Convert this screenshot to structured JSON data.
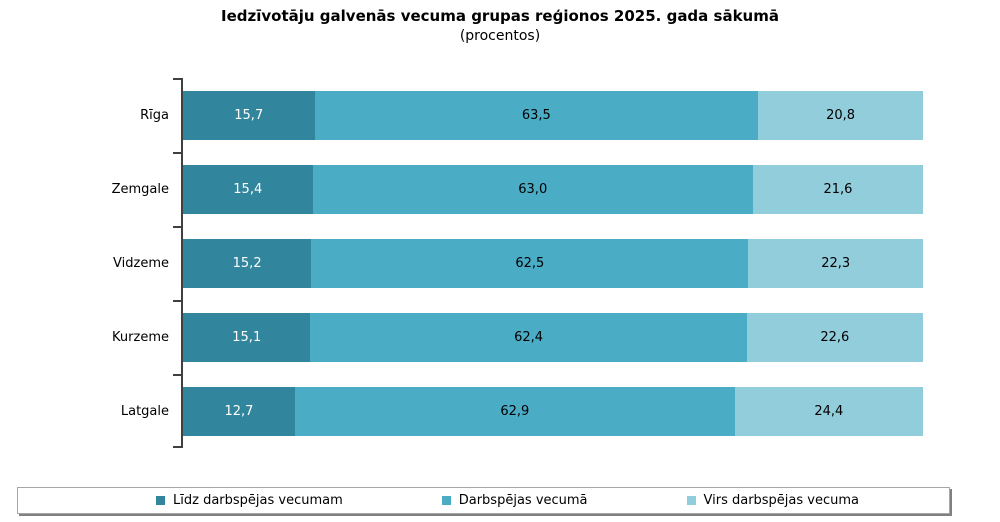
{
  "title": "Iedzīvotāju galvenās vecuma grupas reģionos 2025. gada sākumā",
  "subtitle": "(procentos)",
  "chart_data": {
    "type": "bar",
    "orientation": "horizontal",
    "stacked": true,
    "title": "Iedzīvotāju galvenās vecuma grupas reģionos 2025. gada sākumā",
    "subtitle": "(procentos)",
    "xlabel": "",
    "ylabel": "",
    "xlim": [
      0,
      100
    ],
    "grid": false,
    "legend_position": "bottom",
    "axis_color": "#404040",
    "value_decimal_separator": ",",
    "categories": [
      "Rīga",
      "Zemgale",
      "Vidzeme",
      "Kurzeme",
      "Latgale"
    ],
    "series": [
      {
        "name": "Līdz darbspējas vecumam",
        "color": "#31859C",
        "label_color": "#FFFFFF",
        "values": [
          15.7,
          15.4,
          15.2,
          15.1,
          12.7
        ]
      },
      {
        "name": "Darbspējas vecumā",
        "color": "#4BACC6",
        "label_color": "#000000",
        "values": [
          63.5,
          63.0,
          62.5,
          62.4,
          62.9
        ]
      },
      {
        "name": "Virs darbspējas vecuma",
        "color": "#92CDDC",
        "label_color": "#000000",
        "values": [
          20.8,
          21.6,
          22.3,
          22.6,
          24.4
        ]
      }
    ],
    "value_labels": [
      [
        "15,7",
        "63,5",
        "20,8"
      ],
      [
        "15,4",
        "63,0",
        "21,6"
      ],
      [
        "15,2",
        "62,5",
        "22,3"
      ],
      [
        "15,1",
        "62,4",
        "22,6"
      ],
      [
        "12,7",
        "62,9",
        "24,4"
      ]
    ]
  }
}
